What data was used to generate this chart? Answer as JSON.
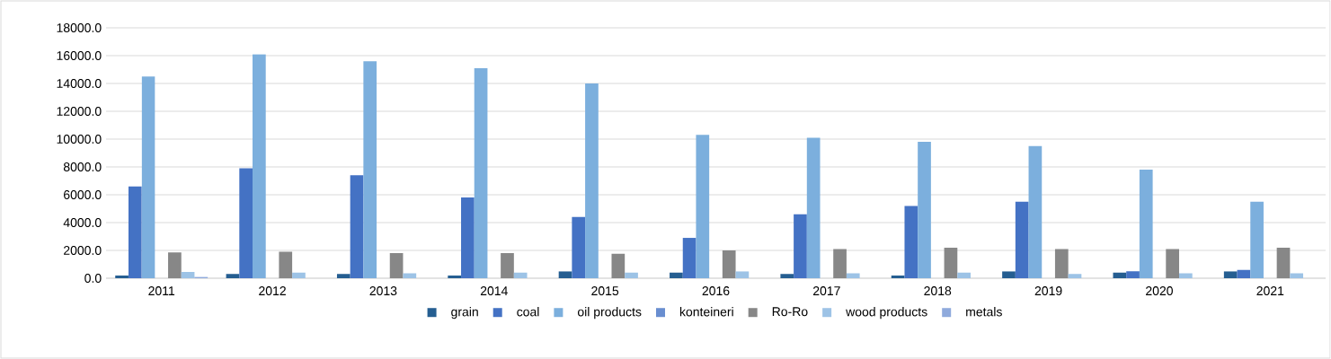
{
  "chart_data": {
    "type": "bar",
    "categories": [
      "2011",
      "2012",
      "2013",
      "2014",
      "2015",
      "2016",
      "2017",
      "2018",
      "2019",
      "2020",
      "2021"
    ],
    "series": [
      {
        "name": "grain",
        "color": "#255e91",
        "values": [
          200,
          300,
          300,
          200,
          500,
          400,
          300,
          200,
          500,
          400,
          500
        ]
      },
      {
        "name": "coal",
        "color": "#4472c4",
        "values": [
          6600,
          7900,
          7400,
          5800,
          4400,
          2900,
          4600,
          5200,
          5500,
          500,
          600
        ]
      },
      {
        "name": "oil products",
        "color": "#7cafdd",
        "values": [
          14500,
          16100,
          15600,
          15100,
          14000,
          10300,
          10100,
          9800,
          9500,
          7800,
          5500
        ]
      },
      {
        "name": "konteineri",
        "color": "#698ed0",
        "values": [
          0,
          0,
          0,
          0,
          0,
          0,
          0,
          0,
          0,
          0,
          0
        ]
      },
      {
        "name": "Ro-Ro",
        "color": "#878787",
        "values": [
          1850,
          1900,
          1800,
          1800,
          1750,
          2000,
          2100,
          2200,
          2100,
          2100,
          2200
        ]
      },
      {
        "name": "wood products",
        "color": "#9dc3e6",
        "values": [
          450,
          400,
          350,
          400,
          400,
          500,
          350,
          400,
          300,
          350,
          350
        ]
      },
      {
        "name": "metals",
        "color": "#8faadc",
        "values": [
          100,
          0,
          0,
          0,
          0,
          0,
          0,
          0,
          0,
          0,
          0
        ]
      }
    ],
    "ylim": [
      0,
      18000
    ],
    "yticks": [
      {
        "value": 0,
        "label": "0.0"
      },
      {
        "value": 2000,
        "label": "2000.0"
      },
      {
        "value": 4000,
        "label": "4000.0"
      },
      {
        "value": 6000,
        "label": "6000.0"
      },
      {
        "value": 8000,
        "label": "8000.0"
      },
      {
        "value": 10000,
        "label": "10000.0"
      },
      {
        "value": 12000,
        "label": "12000.0"
      },
      {
        "value": 14000,
        "label": "14000.0"
      },
      {
        "value": 16000,
        "label": "16000.0"
      },
      {
        "value": 18000,
        "label": "18000.0"
      }
    ],
    "grid": "y",
    "legend": "bottom"
  }
}
